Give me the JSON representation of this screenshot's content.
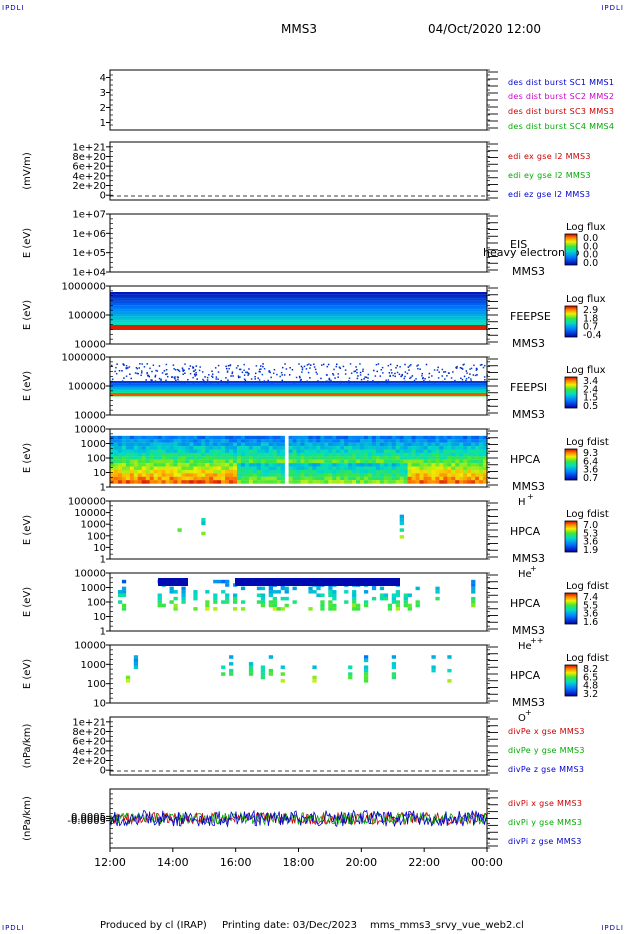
{
  "corner_text": "IPDLI",
  "header": {
    "spacecraft": "MMS3",
    "datetime": "04/Oct/2020 12:00"
  },
  "footer": {
    "produced_by": "Produced by cl (IRAP)",
    "printing_date": "Printing date: 03/Dec/2023",
    "filename": "mms_mms3_srvy_vue_web2.cl"
  },
  "chart_data": {
    "type": "heatmap",
    "x_ticks": [
      "12:00",
      "14:00",
      "16:00",
      "18:00",
      "20:00",
      "22:00",
      "00:00"
    ],
    "panels": [
      {
        "kind": "line",
        "ylim": [
          0.5,
          4.5
        ],
        "y_ticks": [
          "1",
          "2",
          "3",
          "4"
        ],
        "legend": [
          {
            "text": "des dist burst SC1 MMS1",
            "color": "#0000cc"
          },
          {
            "text": "des dist burst SC2 MMS2",
            "color": "#cc00cc"
          },
          {
            "text": "des dist burst SC3 MMS3",
            "color": "#cc0000"
          },
          {
            "text": "des dist burst SC4 MMS4",
            "color": "#00aa00"
          }
        ]
      },
      {
        "kind": "line",
        "ylabel": "(mV/m)",
        "ylim": [
          -1e+20,
          1.1e+21
        ],
        "dashed_zero": true,
        "y_ticks": [
          "1e+21",
          "8e+20",
          "6e+20",
          "4e+20",
          "2e+20",
          "0"
        ],
        "legend": [
          {
            "text": "edi ex gse l2 MMS3",
            "color": "#cc0000"
          },
          {
            "text": "edi ey gse l2 MMS3",
            "color": "#00aa00"
          },
          {
            "text": "edi ez gse l2 MMS3",
            "color": "#0000cc"
          }
        ]
      },
      {
        "kind": "spec",
        "ylabel": "E (eV)",
        "y_ticks": [
          "1e+07",
          "1e+06",
          "1e+05",
          "1e+04"
        ],
        "instrument": [
          "EIS",
          "MMS3"
        ],
        "overlay": "heavy electron to",
        "cbar_title": "Log flux",
        "cbar_ticks": [
          "0.0",
          "0.0",
          "0.0",
          "0.0"
        ]
      },
      {
        "kind": "spec",
        "ylabel": "E (eV)",
        "y_ticks": [
          "1000000",
          "100000",
          "10000"
        ],
        "instrument": [
          "FEEPSE",
          "MMS3"
        ],
        "cbar_title": "Log flux",
        "cbar_ticks": [
          "2.9",
          "1.8",
          "0.7",
          "-0.4"
        ]
      },
      {
        "kind": "spec",
        "ylabel": "E (eV)",
        "y_ticks": [
          "1000000",
          "100000",
          "10000"
        ],
        "instrument": [
          "FEEPSI",
          "MMS3"
        ],
        "cbar_title": "Log flux",
        "cbar_ticks": [
          "3.4",
          "2.4",
          "1.5",
          "0.5"
        ]
      },
      {
        "kind": "spec",
        "ylabel": "E (eV)",
        "y_ticks": [
          "10000",
          "1000",
          "100",
          "10",
          "1"
        ],
        "instrument": [
          "HPCA",
          "MMS3"
        ],
        "species": "H",
        "charge": "+",
        "cbar_title": "Log fdist",
        "cbar_ticks": [
          "9.3",
          "6.4",
          "3.6",
          "0.7"
        ]
      },
      {
        "kind": "spec",
        "ylabel": "E (eV)",
        "y_ticks": [
          "100000",
          "10000",
          "1000",
          "100",
          "10",
          "1"
        ],
        "instrument": [
          "HPCA",
          "MMS3"
        ],
        "species": "He",
        "charge": "+",
        "cbar_title": "Log fdist",
        "cbar_ticks": [
          "7.0",
          "5.3",
          "3.6",
          "1.9"
        ]
      },
      {
        "kind": "spec",
        "ylabel": "E (eV)",
        "y_ticks": [
          "10000",
          "1000",
          "100",
          "10",
          "1"
        ],
        "instrument": [
          "HPCA",
          "MMS3"
        ],
        "species": "He",
        "charge": "++",
        "cbar_title": "Log fdist",
        "cbar_ticks": [
          "7.4",
          "5.5",
          "3.6",
          "1.6"
        ]
      },
      {
        "kind": "spec",
        "ylabel": "E (eV)",
        "y_ticks": [
          "10000",
          "1000",
          "100",
          "10"
        ],
        "instrument": [
          "HPCA",
          "MMS3"
        ],
        "species": "O",
        "charge": "+",
        "cbar_title": "Log fdist",
        "cbar_ticks": [
          "8.2",
          "6.5",
          "4.8",
          "3.2"
        ]
      },
      {
        "kind": "line",
        "ylabel": "(nPa/km)",
        "ylim": [
          -1e+20,
          1.1e+21
        ],
        "dashed_zero": true,
        "y_ticks": [
          "1e+21",
          "8e+20",
          "6e+20",
          "4e+20",
          "2e+20",
          "0"
        ],
        "legend": [
          {
            "text": "divPe x gse MMS3",
            "color": "#cc0000"
          },
          {
            "text": "divPe y gse MMS3",
            "color": "#00aa00"
          },
          {
            "text": "divPe z gse MMS3",
            "color": "#0000cc"
          }
        ]
      },
      {
        "kind": "noise",
        "ylabel": "(nPa/km)",
        "ylim": [
          -0.007,
          0.007
        ],
        "y_ticks": [
          "0.0005",
          "0.0000",
          "-0.0005"
        ],
        "legend": [
          {
            "text": "divPi x gse MMS3",
            "color": "#cc0000"
          },
          {
            "text": "divPi y gse MMS3",
            "color": "#00aa00"
          },
          {
            "text": "divPi z gse MMS3",
            "color": "#0000cc"
          }
        ]
      }
    ]
  }
}
